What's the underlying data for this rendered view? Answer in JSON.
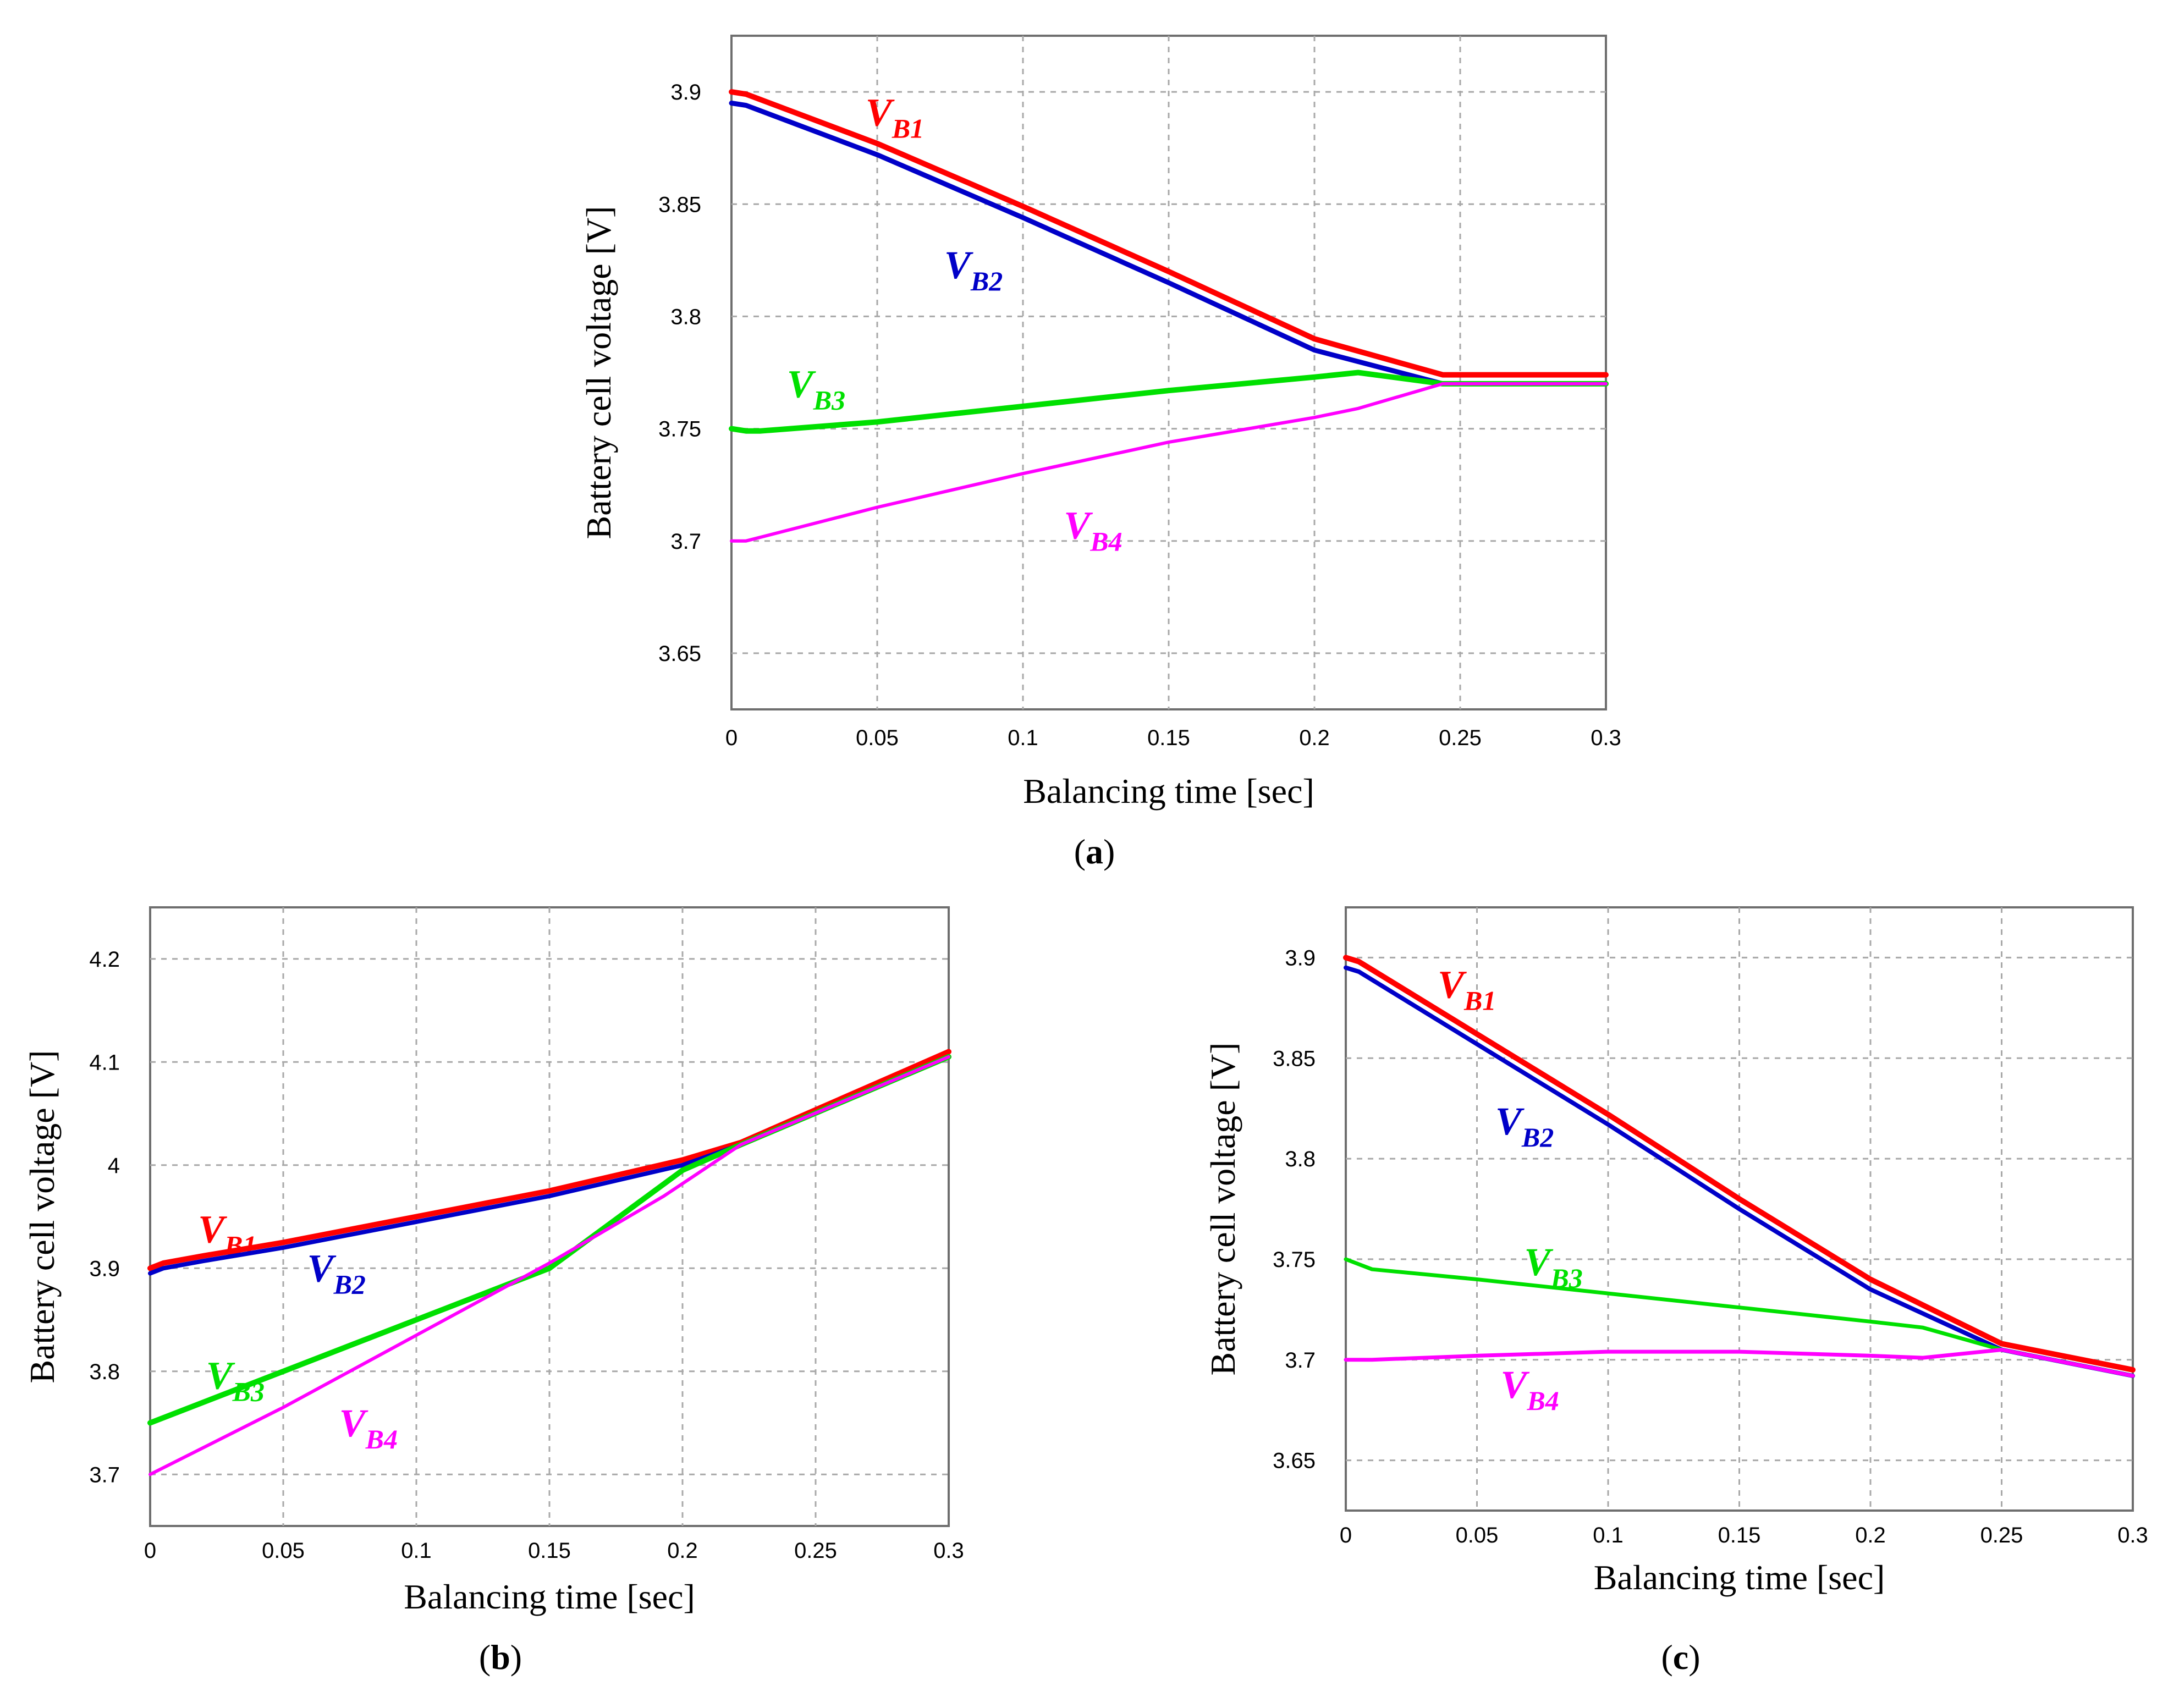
{
  "colors": {
    "VB1": "#ff0000",
    "VB2": "#0000c8",
    "VB3": "#00e000",
    "VB4": "#ff00ff"
  },
  "chart_data": [
    {
      "panel": "(a)",
      "panel_letter": "a",
      "type": "line",
      "title": "",
      "xlabel": "Balancing time [sec]",
      "ylabel": "Battery cell voltage [V]",
      "xlim": [
        0,
        0.3
      ],
      "ylim": [
        3.625,
        3.925
      ],
      "xticks": [
        0,
        0.05,
        0.1,
        0.15,
        0.2,
        0.25,
        0.3
      ],
      "xtick_labels": [
        "0",
        "0.05",
        "0.1",
        "0.15",
        "0.2",
        "0.25",
        "0.3"
      ],
      "yticks": [
        3.65,
        3.7,
        3.75,
        3.8,
        3.85,
        3.9
      ],
      "ytick_labels": [
        "3.65",
        "3.7",
        "3.75",
        "3.8",
        "3.85",
        "3.9"
      ],
      "grid": true,
      "series": [
        {
          "key": "VB1",
          "label_main": "V",
          "label_sub": "B1",
          "label_at": [
            0.046,
            3.885
          ],
          "x": [
            0,
            0.005,
            0.05,
            0.1,
            0.15,
            0.2,
            0.244,
            0.3
          ],
          "y": [
            3.9,
            3.899,
            3.877,
            3.849,
            3.82,
            3.79,
            3.774,
            3.774
          ]
        },
        {
          "key": "VB2",
          "label_main": "V",
          "label_sub": "B2",
          "label_at": [
            0.073,
            3.817
          ],
          "x": [
            0,
            0.005,
            0.05,
            0.1,
            0.15,
            0.2,
            0.244,
            0.3
          ],
          "y": [
            3.895,
            3.894,
            3.872,
            3.844,
            3.815,
            3.785,
            3.77,
            3.77
          ]
        },
        {
          "key": "VB3",
          "label_main": "V",
          "label_sub": "B3",
          "label_at": [
            0.019,
            3.764
          ],
          "x": [
            0,
            0.005,
            0.01,
            0.05,
            0.1,
            0.15,
            0.2,
            0.215,
            0.244,
            0.3
          ],
          "y": [
            3.75,
            3.749,
            3.749,
            3.753,
            3.76,
            3.767,
            3.773,
            3.775,
            3.77,
            3.77
          ]
        },
        {
          "key": "VB4",
          "label_main": "V",
          "label_sub": "B4",
          "label_at": [
            0.114,
            3.701
          ],
          "x": [
            0,
            0.005,
            0.05,
            0.1,
            0.15,
            0.2,
            0.215,
            0.244,
            0.3
          ],
          "y": [
            3.7,
            3.7,
            3.715,
            3.73,
            3.744,
            3.755,
            3.759,
            3.77,
            3.77
          ]
        }
      ]
    },
    {
      "panel": "(b)",
      "panel_letter": "b",
      "type": "line",
      "title": "",
      "xlabel": "Balancing time [sec]",
      "ylabel": "Battery cell voltage [V]",
      "xlim": [
        0,
        0.3
      ],
      "ylim": [
        3.65,
        4.25
      ],
      "xticks": [
        0,
        0.05,
        0.1,
        0.15,
        0.2,
        0.25,
        0.3
      ],
      "xtick_labels": [
        "0",
        "0.05",
        "0.1",
        "0.15",
        "0.2",
        "0.25",
        "0.3"
      ],
      "yticks": [
        3.7,
        3.8,
        3.9,
        4.0,
        4.1,
        4.2
      ],
      "ytick_labels": [
        "3.7",
        "3.8",
        "3.9",
        "4",
        "4.1",
        "4.2"
      ],
      "grid": true,
      "series": [
        {
          "key": "VB1",
          "label_main": "V",
          "label_sub": "B1",
          "label_at": [
            0.018,
            3.925
          ],
          "x": [
            0,
            0.005,
            0.02,
            0.05,
            0.1,
            0.15,
            0.2,
            0.222,
            0.3
          ],
          "y": [
            3.9,
            3.905,
            3.912,
            3.925,
            3.95,
            3.975,
            4.005,
            4.022,
            4.11
          ]
        },
        {
          "key": "VB2",
          "label_main": "V",
          "label_sub": "B2",
          "label_at": [
            0.059,
            3.887
          ],
          "x": [
            0,
            0.005,
            0.02,
            0.05,
            0.1,
            0.15,
            0.2,
            0.222,
            0.3
          ],
          "y": [
            3.895,
            3.9,
            3.907,
            3.92,
            3.945,
            3.97,
            4.0,
            4.02,
            4.105
          ]
        },
        {
          "key": "VB3",
          "label_main": "V",
          "label_sub": "B3",
          "label_at": [
            0.021,
            3.783
          ],
          "x": [
            0,
            0.005,
            0.05,
            0.1,
            0.15,
            0.2,
            0.222,
            0.3
          ],
          "y": [
            3.75,
            3.755,
            3.8,
            3.85,
            3.9,
            3.995,
            4.02,
            4.105
          ]
        },
        {
          "key": "VB4",
          "label_main": "V",
          "label_sub": "B4",
          "label_at": [
            0.071,
            3.737
          ],
          "x": [
            0,
            0.05,
            0.1,
            0.15,
            0.193,
            0.222,
            0.3
          ],
          "y": [
            3.7,
            3.765,
            3.835,
            3.905,
            3.97,
            4.02,
            4.105
          ]
        }
      ]
    },
    {
      "panel": "(c)",
      "panel_letter": "c",
      "type": "line",
      "title": "",
      "xlabel": "Balancing time [sec]",
      "ylabel": "Battery cell voltage [V]",
      "xlim": [
        0,
        0.3
      ],
      "ylim": [
        3.625,
        3.925
      ],
      "xticks": [
        0,
        0.05,
        0.1,
        0.15,
        0.2,
        0.25,
        0.3
      ],
      "xtick_labels": [
        "0",
        "0.05",
        "0.1",
        "0.15",
        "0.2",
        "0.25",
        "0.3"
      ],
      "yticks": [
        3.65,
        3.7,
        3.75,
        3.8,
        3.85,
        3.9
      ],
      "ytick_labels": [
        "3.65",
        "3.7",
        "3.75",
        "3.8",
        "3.85",
        "3.9"
      ],
      "grid": true,
      "series": [
        {
          "key": "VB1",
          "label_main": "V",
          "label_sub": "B1",
          "label_at": [
            0.035,
            3.88
          ],
          "x": [
            0,
            0.005,
            0.05,
            0.1,
            0.15,
            0.2,
            0.25,
            0.3
          ],
          "y": [
            3.9,
            3.898,
            3.862,
            3.822,
            3.78,
            3.74,
            3.708,
            3.695
          ]
        },
        {
          "key": "VB2",
          "label_main": "V",
          "label_sub": "B2",
          "label_at": [
            0.057,
            3.812
          ],
          "x": [
            0,
            0.005,
            0.05,
            0.1,
            0.15,
            0.2,
            0.25,
            0.3
          ],
          "y": [
            3.895,
            3.893,
            3.857,
            3.817,
            3.775,
            3.735,
            3.705,
            3.692
          ]
        },
        {
          "key": "VB3",
          "label_main": "V",
          "label_sub": "B3",
          "label_at": [
            0.068,
            3.742
          ],
          "x": [
            0,
            0.01,
            0.05,
            0.1,
            0.15,
            0.2,
            0.22,
            0.25,
            0.3
          ],
          "y": [
            3.75,
            3.745,
            3.74,
            3.733,
            3.726,
            3.719,
            3.716,
            3.705,
            3.692
          ]
        },
        {
          "key": "VB4",
          "label_main": "V",
          "label_sub": "B4",
          "label_at": [
            0.059,
            3.681
          ],
          "x": [
            0,
            0.01,
            0.05,
            0.1,
            0.15,
            0.2,
            0.22,
            0.25,
            0.3
          ],
          "y": [
            3.7,
            3.7,
            3.702,
            3.704,
            3.704,
            3.702,
            3.701,
            3.705,
            3.692
          ]
        }
      ]
    }
  ]
}
